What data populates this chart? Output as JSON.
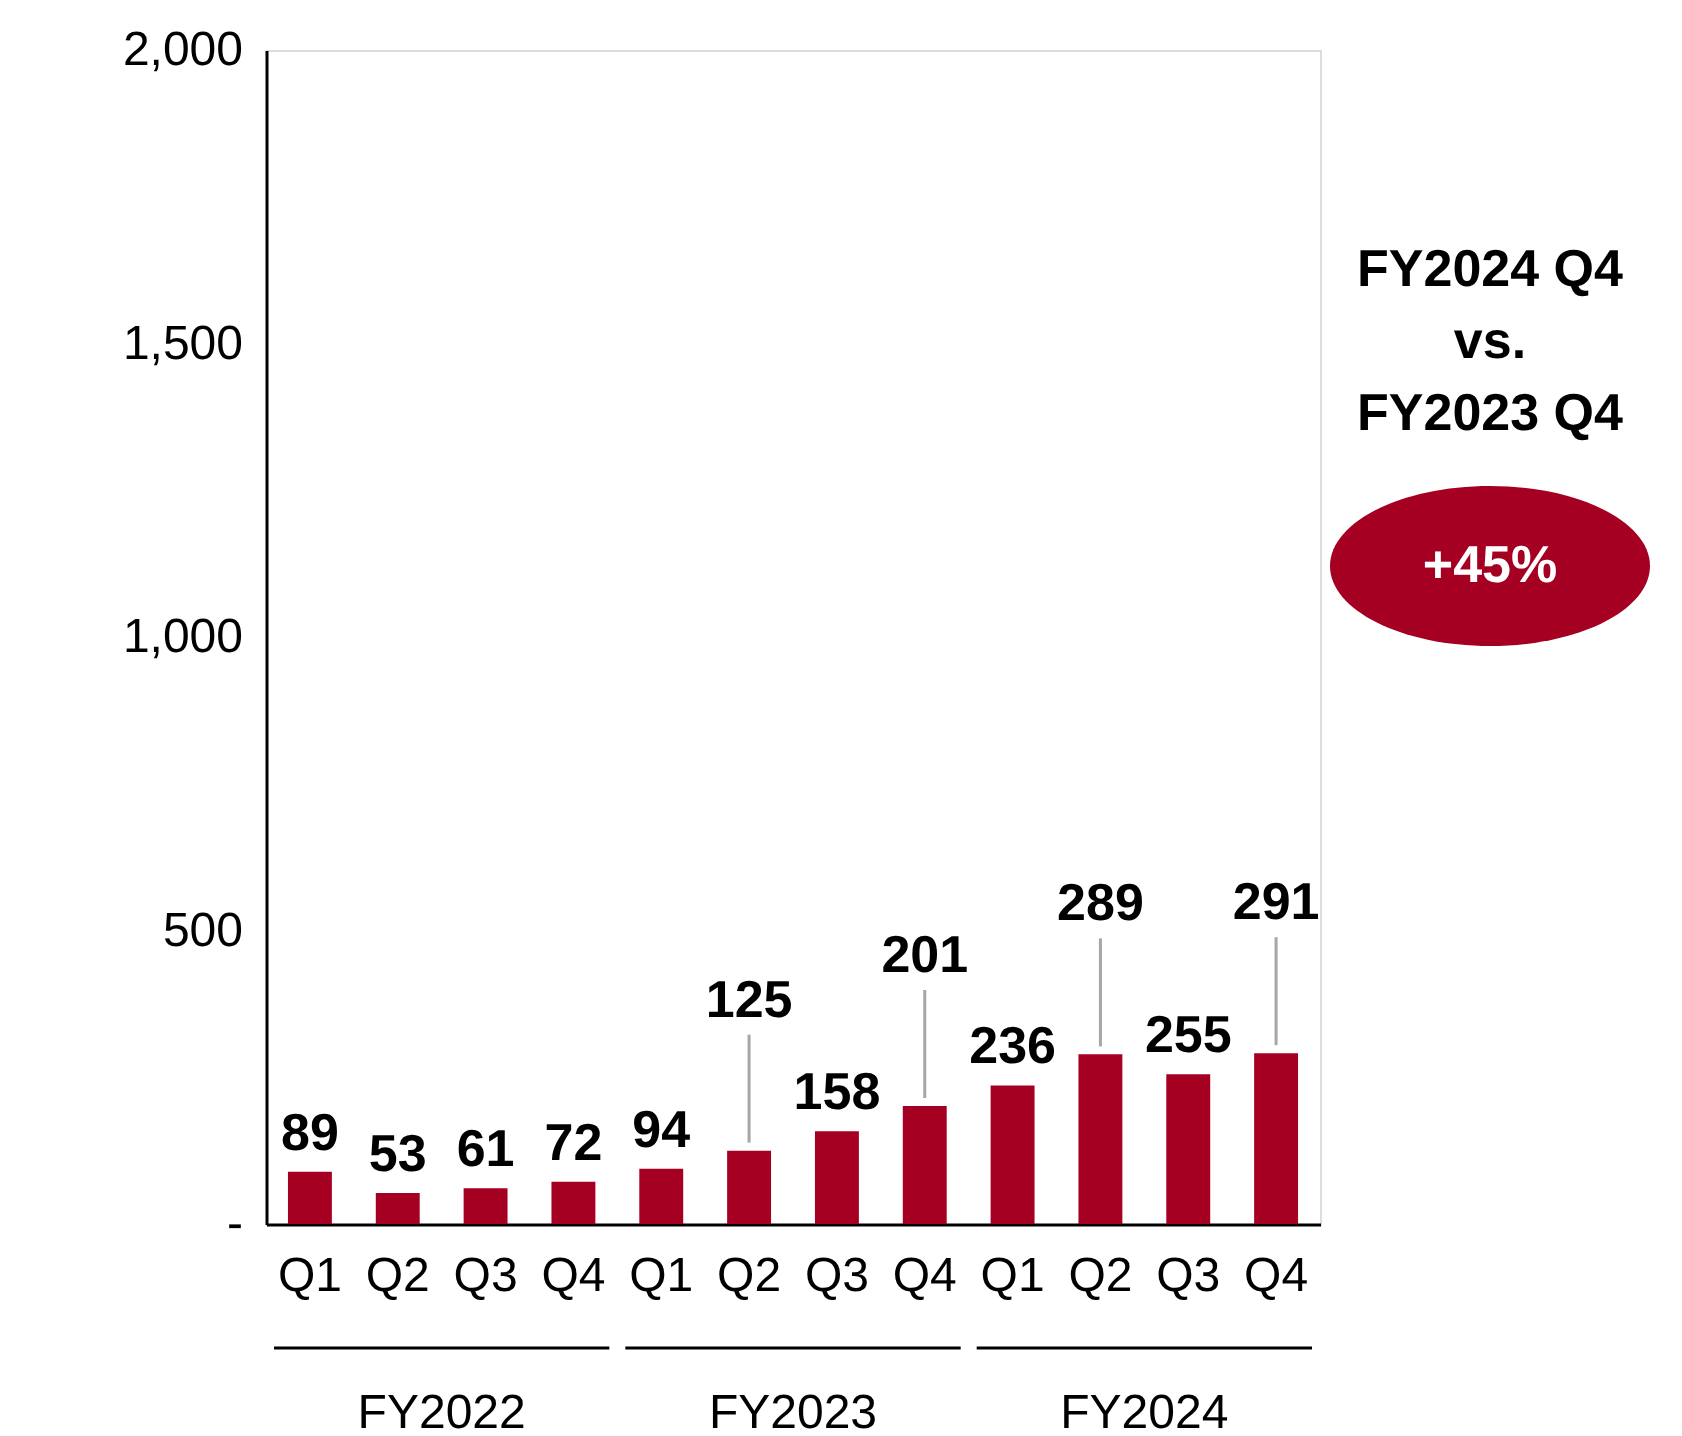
{
  "chart_data": {
    "type": "bar",
    "categories": [
      "Q1",
      "Q2",
      "Q3",
      "Q4",
      "Q1",
      "Q2",
      "Q3",
      "Q4",
      "Q1",
      "Q2",
      "Q3",
      "Q4"
    ],
    "values": [
      89,
      53,
      61,
      72,
      94,
      125,
      158,
      201,
      236,
      289,
      255,
      291
    ],
    "color": "#a50021",
    "ylim": [
      0,
      2000
    ],
    "yticks": [
      {
        "value": 0,
        "label": "-"
      },
      {
        "value": 500,
        "label": "500"
      },
      {
        "value": 1000,
        "label": "1,000"
      },
      {
        "value": 1500,
        "label": "1,500"
      },
      {
        "value": 2000,
        "label": "2,000"
      }
    ],
    "data_labels": true,
    "annotations": [
      "FY2022",
      "FY2023",
      "FY2024",
      "FY2024 Q4\nvs.\nFY2023 Q4",
      "+45%"
    ]
  }
}
